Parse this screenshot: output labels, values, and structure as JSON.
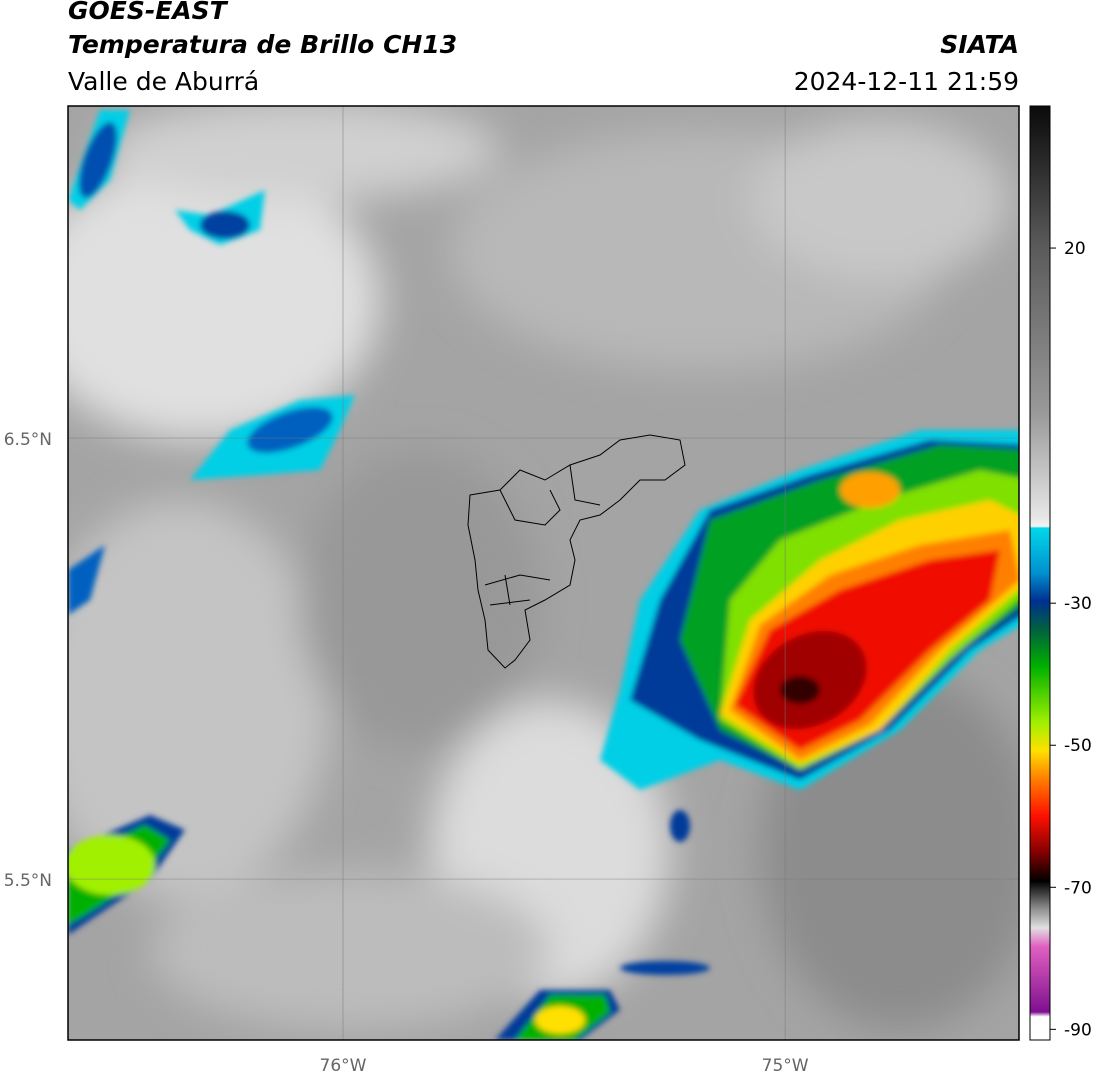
{
  "header": {
    "title": "GOES-EAST",
    "subtitle": "Temperatura de Brillo CH13",
    "location": "Valle de Aburrá",
    "source": "SIATA",
    "timestamp": "2024-12-11 21:59"
  },
  "map": {
    "xlim": [
      -76.622,
      -74.471
    ],
    "ylim": [
      5.135,
      7.253
    ],
    "xticks": [
      {
        "value": -76,
        "label": "76°W"
      },
      {
        "value": -75,
        "label": "75°W"
      }
    ],
    "yticks": [
      {
        "value": 6.5,
        "label": "6.5°N"
      },
      {
        "value": 5.5,
        "label": "5.5°N"
      }
    ]
  },
  "colorbar": {
    "lim": [
      -91.5,
      40
    ],
    "ticks": [
      20,
      -30,
      -50,
      -70,
      -90
    ]
  }
}
